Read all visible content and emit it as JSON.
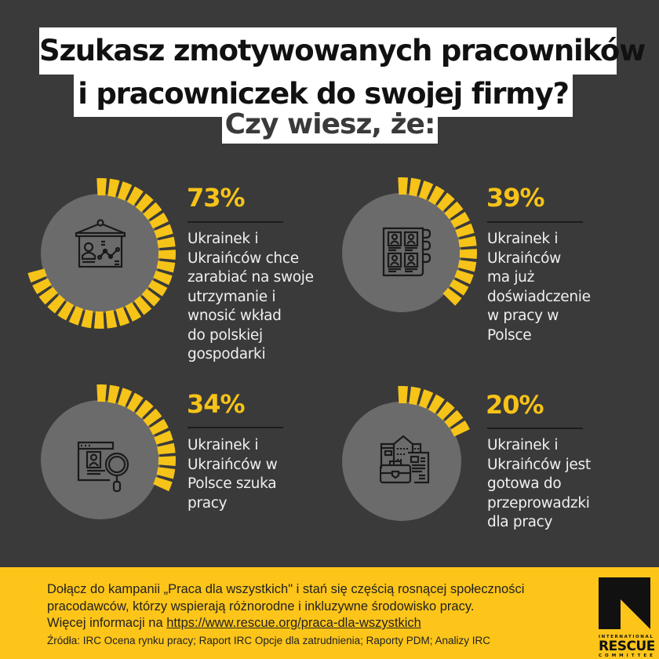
{
  "header": {
    "title_line1": "Szukasz zmotywowanych pracowników",
    "title_line2": "i pracowniczek do swojej firmy?",
    "subtitle": "Czy wiesz, że:"
  },
  "stats": [
    {
      "percent_label": "73%",
      "percent_value": 73,
      "icon": "presentation-board-icon",
      "description": "Ukrainek i\nUkraińców chce\nzarabiać na swoje\nutrzymanie i\nwnosić wkład\ndo polskiej\ngospodarki"
    },
    {
      "percent_label": "39%",
      "percent_value": 39,
      "icon": "cv-profiles-binder-icon",
      "description": "Ukrainek i\nUkraińców\nma już\ndoświadczenie\nw pracy w\nPolsce"
    },
    {
      "percent_label": "34%",
      "percent_value": 34,
      "icon": "job-search-magnifier-icon",
      "description": "Ukrainek i\nUkraińców w\nPolsce szuka\npracy"
    },
    {
      "percent_label": "20%",
      "percent_value": 20,
      "icon": "city-briefcase-icon",
      "description": "Ukrainek i\nUkraińców jest\ngotowa do\nprzeprowadzki\ndla pracy"
    }
  ],
  "footer": {
    "campaign_text": "Dołącz do kampanii „Praca dla wszystkich\" i stań się częścią rosnącej społeczności\npracodawców, którzy wspierają różnorodne i inkluzywne środowisko pracy.",
    "more_info_prefix": "Więcej informacji na ",
    "more_info_link": "https://www.rescue.org/praca-dla-wszystkich",
    "sources": "Źródła: IRC Ocena rynku pracy; Raport IRC Opcje dla zatrudnienia; Raporty PDM; Analizy IRC"
  },
  "logo": {
    "line1": "INTERNATIONAL",
    "line2": "RESCUE",
    "line3": "COMMITTEE"
  },
  "colors": {
    "background": "#3a3a3a",
    "accent_yellow": "#f6c318",
    "footer_yellow": "#fdc51a",
    "circle_gray": "#6b6b6b"
  }
}
